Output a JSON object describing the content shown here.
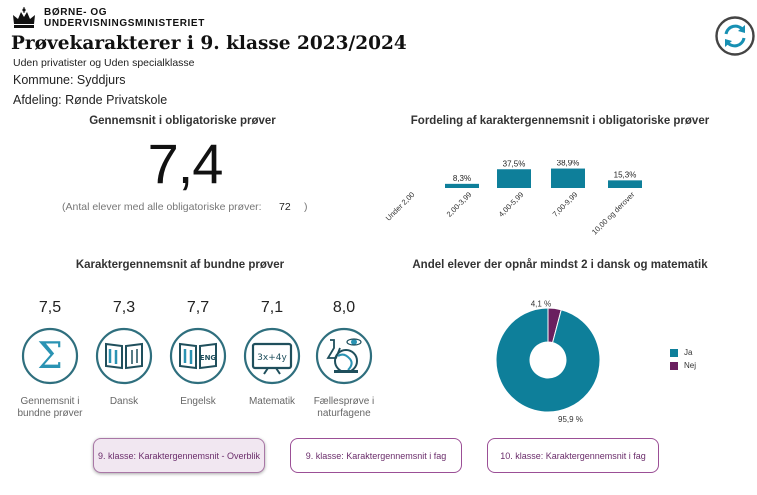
{
  "header": {
    "ministry_line1": "BØRNE- OG",
    "ministry_line2": "UNDERVISNINGSMINISTERIET",
    "title": "Prøvekarakterer i 9. klasse 2023/2024",
    "subtitle": "Uden privatister og Uden specialklasse",
    "kommune": "Kommune: Syddjurs",
    "afdeling": "Afdeling: Rønde Privatskole",
    "logo_icon": "crown-icon",
    "refresh_icon": "refresh-cycle-icon"
  },
  "average": {
    "title": "Gennemsnit i obligatoriske prøver",
    "value": "7,4",
    "note": "(Antal elever med alle obligatoriske prøver:",
    "count": "72",
    "note_close": ")"
  },
  "distribution": {
    "title": "Fordeling af karaktergennemsnit i obligatoriske prøver"
  },
  "bound": {
    "title": "Karaktergennemsnit af bundne prøver",
    "subjects": [
      {
        "value": "7,5",
        "label_line1": "Gennemsnit i",
        "label_line2": "bundne prøver",
        "icon": "sigma-icon"
      },
      {
        "value": "7,3",
        "label_line1": "Dansk",
        "label_line2": "",
        "icon": "open-book-icon"
      },
      {
        "value": "7,7",
        "label_line1": "Engelsk",
        "label_line2": "",
        "icon": "english-book-icon"
      },
      {
        "value": "7,1",
        "label_line1": "Matematik",
        "label_line2": "",
        "icon": "math-board-icon"
      },
      {
        "value": "8,0",
        "label_line1": "Fællesprøve i",
        "label_line2": "naturfagene",
        "icon": "science-icon"
      }
    ]
  },
  "pie": {
    "title": "Andel elever der opnår mindst 2 i dansk og matematik"
  },
  "chart_data": [
    {
      "type": "bar",
      "title": "Fordeling af karaktergennemsnit i obligatoriske prøver",
      "categories": [
        "Under 2,00",
        "2,00-3,99",
        "4,00-5,99",
        "7,00-9,99",
        "10,00 og derover"
      ],
      "values": [
        0,
        8.3,
        37.5,
        38.9,
        15.3
      ],
      "value_labels": [
        "",
        "8,3%",
        "37,5%",
        "38,9%",
        "15,3%"
      ],
      "ylim": [
        0,
        40
      ],
      "color": "#0e7f9a",
      "grid": false
    },
    {
      "type": "pie",
      "title": "Andel elever der opnår mindst 2 i dansk og matematik",
      "categories": [
        "Ja",
        "Nej"
      ],
      "values": [
        95.9,
        4.1
      ],
      "value_labels": [
        "95,9 %",
        "4,1 %"
      ],
      "colors": [
        "#0e7f9a",
        "#6a1f5f"
      ],
      "donut": true,
      "legend": "right"
    }
  ],
  "nav": {
    "buttons": [
      {
        "label": "9. klasse: Karaktergennemsnit - Overblik",
        "active": true
      },
      {
        "label": "9. klasse: Karaktergennemsnit i fag",
        "active": false
      },
      {
        "label": "10. klasse: Karaktergennemsnit i fag",
        "active": false
      }
    ]
  },
  "colors": {
    "accent": "#0e7f9a",
    "secondary": "#6a1f5f",
    "nav_border": "#9b4f96",
    "nav_text": "#6b2d6b",
    "icon_stroke": "#2f6f7e"
  }
}
